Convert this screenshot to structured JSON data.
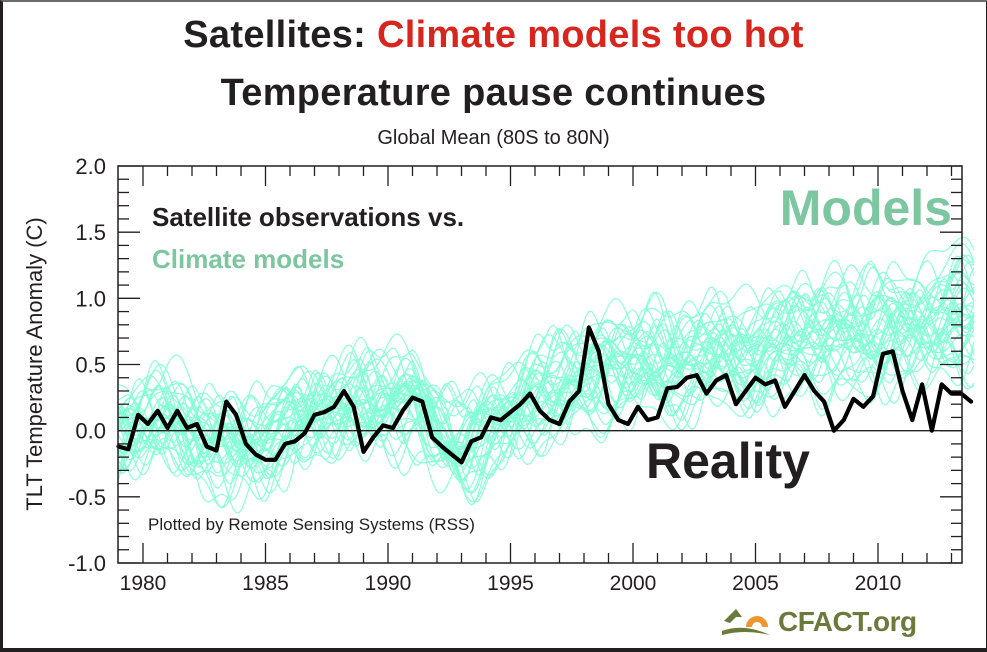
{
  "header": {
    "title_part1": "Satellites: ",
    "title_part2": "Climate models too hot",
    "subtitle": "Temperature pause continues",
    "plot_title": "Global Mean (80S to 80N)"
  },
  "logo": {
    "text": "CFACT.org",
    "icon": "cfact-mountain-sun-icon"
  },
  "colors": {
    "accent_red": "#d7261e",
    "models_line": "#7fffd4",
    "models_label": "#7cc6a0",
    "observations_line": "#000000",
    "text": "#231f20",
    "logo_green": "#6b7a3a",
    "logo_orange": "#f0962e"
  },
  "chart_data": {
    "type": "line",
    "title": "Global Mean (80S to 80N)",
    "xlabel": "",
    "ylabel": "TLT Temperature Anomaly (C)",
    "xlim": [
      1979,
      2014
    ],
    "ylim": [
      -1.0,
      2.0
    ],
    "x_ticks": [
      1980,
      1985,
      1990,
      1995,
      2000,
      2005,
      2010
    ],
    "x_tick_labels": [
      "1980",
      "1985",
      "1990",
      "1995",
      "2000",
      "2005",
      "2010"
    ],
    "y_ticks": [
      -1.0,
      -0.5,
      0.0,
      0.5,
      1.0,
      1.5,
      2.0
    ],
    "y_tick_labels": [
      "-1.0",
      "-0.5",
      "0.0",
      "0.5",
      "1.0",
      "1.5",
      "2.0"
    ],
    "zero_line": true,
    "grid": false,
    "annotations": {
      "legend_line1": "Satellite observations vs.",
      "legend_line2": "Climate models",
      "models_label": "Models",
      "reality_label": "Reality",
      "credit": "Plotted by Remote Sensing Systems (RSS)"
    },
    "series": [
      {
        "name": "Satellite observations (RSS)",
        "color": "#000000",
        "x": [
          1979.0,
          1979.4,
          1979.8,
          1980.2,
          1980.6,
          1981.0,
          1981.4,
          1981.8,
          1982.2,
          1982.6,
          1983.0,
          1983.4,
          1983.8,
          1984.2,
          1984.6,
          1985.0,
          1985.4,
          1985.8,
          1986.2,
          1986.6,
          1987.0,
          1987.4,
          1987.8,
          1988.2,
          1988.6,
          1989.0,
          1989.4,
          1989.8,
          1990.2,
          1990.6,
          1991.0,
          1991.4,
          1991.8,
          1992.2,
          1992.6,
          1993.0,
          1993.4,
          1993.8,
          1994.2,
          1994.6,
          1995.0,
          1995.4,
          1995.8,
          1996.2,
          1996.6,
          1997.0,
          1997.4,
          1997.8,
          1998.2,
          1998.6,
          1999.0,
          1999.4,
          1999.8,
          2000.2,
          2000.6,
          2001.0,
          2001.4,
          2001.8,
          2002.2,
          2002.6,
          2003.0,
          2003.4,
          2003.8,
          2004.2,
          2004.6,
          2005.0,
          2005.4,
          2005.8,
          2006.2,
          2006.6,
          2007.0,
          2007.4,
          2007.8,
          2008.2,
          2008.6,
          2009.0,
          2009.4,
          2009.8,
          2010.2,
          2010.6,
          2011.0,
          2011.4,
          2011.8,
          2012.2,
          2012.6,
          2013.0,
          2013.4,
          2013.8
        ],
        "values": [
          -0.12,
          -0.14,
          0.12,
          0.05,
          0.15,
          0.02,
          0.15,
          0.02,
          0.05,
          -0.12,
          -0.15,
          0.22,
          0.12,
          -0.1,
          -0.18,
          -0.22,
          -0.22,
          -0.1,
          -0.08,
          -0.02,
          0.12,
          0.14,
          0.18,
          0.3,
          0.18,
          -0.16,
          -0.05,
          0.04,
          0.02,
          0.15,
          0.25,
          0.22,
          -0.05,
          -0.12,
          -0.18,
          -0.24,
          -0.08,
          -0.05,
          0.1,
          0.08,
          0.14,
          0.2,
          0.28,
          0.15,
          0.08,
          0.05,
          0.22,
          0.3,
          0.78,
          0.6,
          0.2,
          0.08,
          0.05,
          0.18,
          0.08,
          0.1,
          0.32,
          0.33,
          0.4,
          0.42,
          0.28,
          0.38,
          0.42,
          0.2,
          0.3,
          0.4,
          0.35,
          0.38,
          0.18,
          0.3,
          0.42,
          0.3,
          0.22,
          0.0,
          0.08,
          0.24,
          0.18,
          0.26,
          0.58,
          0.6,
          0.3,
          0.08,
          0.35,
          0.0,
          0.35,
          0.28,
          0.28,
          0.22
        ]
      },
      {
        "name": "Climate models (ensemble)",
        "color": "#7fffd4",
        "description": "Approximately 40 model runs; envelope trends from about -0.2..0.3 in 1979 to about 0.3..1.5 in 2013",
        "x": [
          1979,
          1981,
          1983,
          1985,
          1987,
          1989,
          1991,
          1993,
          1995,
          1997,
          1999,
          2001,
          2003,
          2005,
          2007,
          2009,
          2011,
          2013
        ],
        "mean": [
          0.0,
          0.08,
          -0.12,
          -0.05,
          0.15,
          0.2,
          0.22,
          -0.12,
          0.12,
          0.35,
          0.48,
          0.52,
          0.55,
          0.62,
          0.7,
          0.72,
          0.78,
          0.88
        ],
        "spread": [
          0.28,
          0.28,
          0.32,
          0.3,
          0.3,
          0.3,
          0.32,
          0.35,
          0.35,
          0.35,
          0.38,
          0.38,
          0.4,
          0.42,
          0.42,
          0.42,
          0.45,
          0.5
        ],
        "runs": 40
      }
    ]
  }
}
